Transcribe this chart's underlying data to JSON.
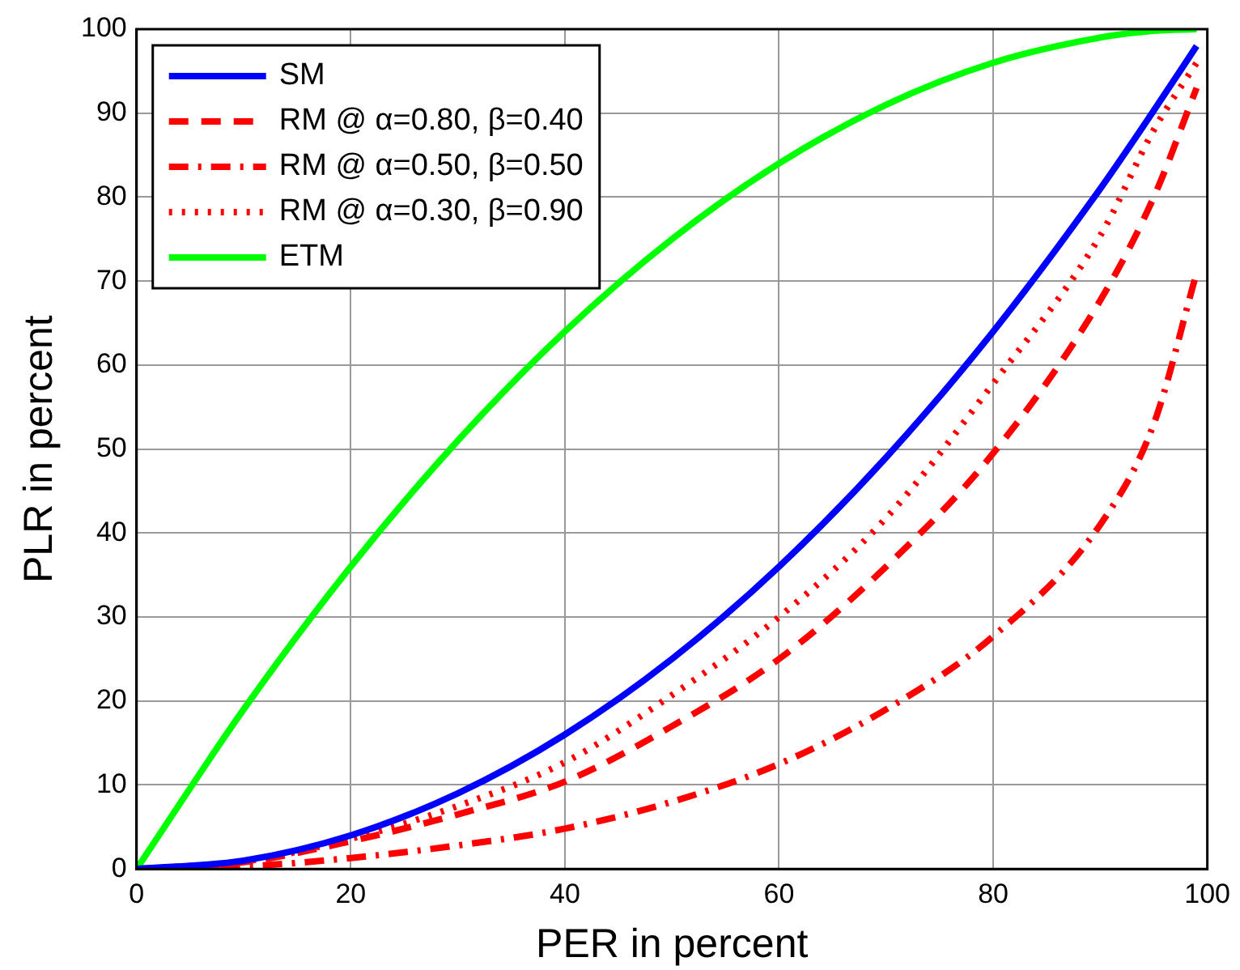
{
  "chart_data": {
    "type": "line",
    "xlabel": "PER in percent",
    "ylabel": "PLR in percent",
    "x": [
      0,
      10,
      20,
      30,
      40,
      50,
      60,
      70,
      80,
      90,
      95,
      99
    ],
    "series": [
      {
        "name": "SM",
        "color": "#0000ff",
        "line_style": "solid",
        "values": [
          0,
          1,
          4,
          9,
          16,
          25,
          36,
          49,
          64,
          81,
          90.3,
          98
        ]
      },
      {
        "name": "RM @ α=0.80, β=0.40",
        "color": "#ff0000",
        "line_style": "dashed",
        "values": [
          0,
          0.8,
          3.3,
          6.5,
          10.4,
          17,
          25,
          36,
          49.5,
          67.7,
          80,
          93
        ]
      },
      {
        "name": "RM @ α=0.50, β=0.50",
        "color": "#ff0000",
        "line_style": "dashdot",
        "values": [
          0,
          0.3,
          1.3,
          2.8,
          4.8,
          8,
          12.5,
          19,
          27.7,
          41,
          53,
          71
        ]
      },
      {
        "name": "RM @ α=0.30, β=0.90",
        "color": "#ff0000",
        "line_style": "dotted",
        "values": [
          0,
          0.9,
          3.6,
          7.5,
          12.7,
          20.7,
          30,
          41.8,
          57.8,
          75.4,
          88,
          96
        ]
      },
      {
        "name": "ETM",
        "color": "#00ff00",
        "line_style": "solid",
        "values": [
          0,
          19,
          36,
          51,
          64,
          75,
          84,
          91,
          96,
          99,
          99.8,
          100
        ]
      }
    ],
    "xlim": [
      0,
      100
    ],
    "xticks": [
      0,
      20,
      40,
      60,
      80,
      100
    ],
    "ylim": [
      0,
      100
    ],
    "yticks": [
      0,
      10,
      20,
      30,
      40,
      50,
      60,
      70,
      80,
      90,
      100
    ],
    "grid": true,
    "legend": "top left",
    "marker": "none"
  }
}
